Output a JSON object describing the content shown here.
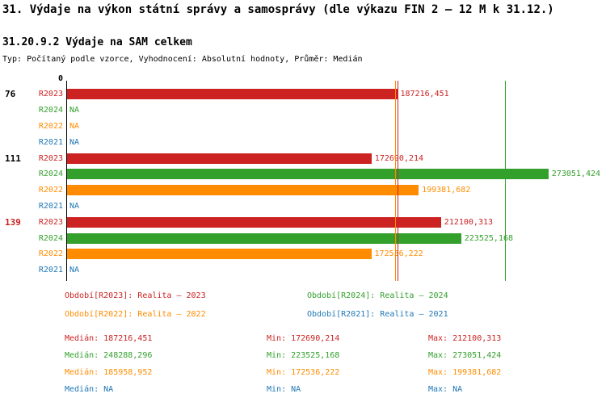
{
  "title": "31. Výdaje na výkon státní správy a samosprávy (dle výkazu FIN 2 – 12 M k 31.12.)",
  "subtitle": "31.20.9.2 Výdaje na SAM celkem",
  "meta": "Typ: Počítaný podle vzorce, Vyhodnocení: Absolutní hodnoty, Průměr: Medián",
  "colors": {
    "R2023": "#cc2222",
    "R2024": "#33a02c",
    "R2022": "#ff8c00",
    "R2021": "#1f77b4",
    "axis": "#000000"
  },
  "chart_data": {
    "type": "bar",
    "orientation": "horizontal",
    "x_axis": {
      "zero_label": "0",
      "xmax": 280000,
      "grid": false
    },
    "series_order": [
      "R2023",
      "R2024",
      "R2022",
      "R2021"
    ],
    "groups": [
      {
        "label": "76",
        "label_color": "#000000",
        "bars": [
          {
            "series": "R2023",
            "value": 187216.451,
            "display": "187216,451"
          },
          {
            "series": "R2024",
            "value": null,
            "display": "NA"
          },
          {
            "series": "R2022",
            "value": null,
            "display": "NA"
          },
          {
            "series": "R2021",
            "value": null,
            "display": "NA"
          }
        ]
      },
      {
        "label": "111",
        "label_color": "#000000",
        "bars": [
          {
            "series": "R2023",
            "value": 172690.214,
            "display": "172690,214"
          },
          {
            "series": "R2024",
            "value": 273051.424,
            "display": "273051,424"
          },
          {
            "series": "R2022",
            "value": 199381.682,
            "display": "199381,682"
          },
          {
            "series": "R2021",
            "value": null,
            "display": "NA"
          }
        ]
      },
      {
        "label": "139",
        "label_color": "#cc2222",
        "bars": [
          {
            "series": "R2023",
            "value": 212100.313,
            "display": "212100,313"
          },
          {
            "series": "R2024",
            "value": 223525.168,
            "display": "223525,168"
          },
          {
            "series": "R2022",
            "value": 172536.222,
            "display": "172536,222"
          },
          {
            "series": "R2021",
            "value": null,
            "display": "NA"
          }
        ]
      }
    ],
    "median_lines": [
      {
        "series": "R2022",
        "value": 185958.952
      },
      {
        "series": "R2023",
        "value": 187216.451
      },
      {
        "series": "R2024",
        "value": 248288.296
      }
    ]
  },
  "legend": [
    {
      "series": "R2023",
      "text": "Období[R2023]: Realita – 2023"
    },
    {
      "series": "R2024",
      "text": "Období[R2024]: Realita – 2024"
    },
    {
      "series": "R2022",
      "text": "Období[R2022]: Realita – 2022"
    },
    {
      "series": "R2021",
      "text": "Období[R2021]: Realita – 2021"
    }
  ],
  "stats": [
    {
      "series": "R2023",
      "median": "Medián: 187216,451",
      "min": "Min: 172690,214",
      "max": "Max: 212100,313"
    },
    {
      "series": "R2024",
      "median": "Medián: 248288,296",
      "min": "Min: 223525,168",
      "max": "Max: 273051,424"
    },
    {
      "series": "R2022",
      "median": "Medián: 185958,952",
      "min": "Min: 172536,222",
      "max": "Max: 199381,682"
    },
    {
      "series": "R2021",
      "median": "Medián: NA",
      "min": "Min: NA",
      "max": "Max: NA"
    }
  ]
}
